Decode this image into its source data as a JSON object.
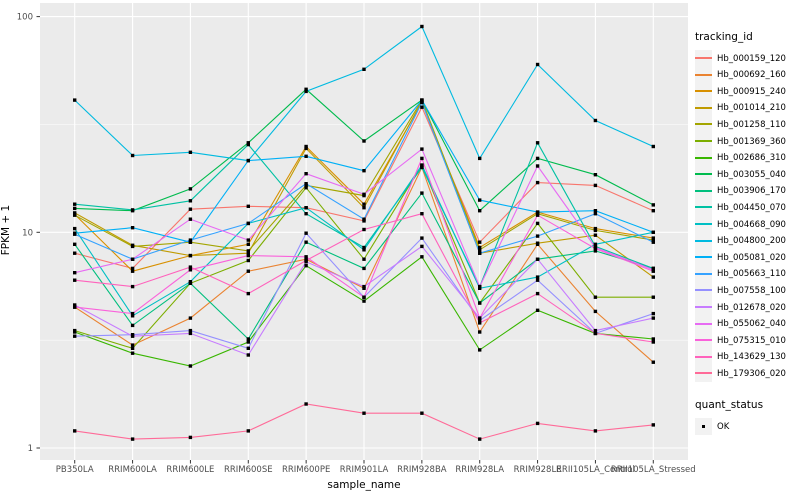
{
  "chart_data": {
    "type": "line",
    "title": "",
    "xlabel": "sample_name",
    "ylabel": "FPKM + 1",
    "y_scale": "log10",
    "ylim": [
      1,
      113
    ],
    "y_ticks": [
      1,
      10,
      100
    ],
    "y_minor_ticks": [
      3.1623,
      31.623
    ],
    "grid": "on",
    "legend_position": "right",
    "panel_bg": "#EBEBEB",
    "grid_color": "#FFFFFF",
    "tick_label_color": "#4D4D4D",
    "point_shape": "filled-square",
    "point_color": "#000000",
    "x_categories": [
      "PB350LA",
      "RRIM600LA",
      "RRIM600LE",
      "RRIM600SE",
      "RRIM600PE",
      "RRIM901LA",
      "RRIM928BA",
      "RRIM928LA",
      "RRIM928LE",
      "RRII105LA_Control",
      "RRII105LA_Stressed"
    ],
    "series": [
      {
        "name": "Hb_000159_120",
        "color": "#F8766D",
        "values": [
          8.0,
          6.8,
          12.8,
          13.2,
          13.0,
          11.3,
          38.0,
          9.0,
          17.0,
          16.5,
          12.6
        ]
      },
      {
        "name": "Hb_000692_160",
        "color": "#EA8331",
        "values": [
          4.5,
          3.0,
          4.0,
          6.6,
          7.5,
          5.5,
          20.0,
          3.45,
          8.8,
          4.3,
          2.5
        ]
      },
      {
        "name": "Hb_000915_240",
        "color": "#D89000",
        "values": [
          12.1,
          6.6,
          7.8,
          8.8,
          25.0,
          13.5,
          40.0,
          8.5,
          12.4,
          10.4,
          9.4
        ]
      },
      {
        "name": "Hb_001014_210",
        "color": "#C09B00",
        "values": [
          12.3,
          8.7,
          7.8,
          8.0,
          24.5,
          13.0,
          40.5,
          8.0,
          8.9,
          9.7,
          6.2
        ]
      },
      {
        "name": "Hb_001258_110",
        "color": "#A3A500",
        "values": [
          12.0,
          8.6,
          9.0,
          8.2,
          16.5,
          14.8,
          41.0,
          8.3,
          12.2,
          10.2,
          9.2
        ]
      },
      {
        "name": "Hb_001369_360",
        "color": "#7CAE00",
        "values": [
          3.5,
          2.9,
          5.8,
          7.4,
          16.1,
          7.5,
          20.5,
          4.7,
          11.0,
          5.0,
          5.0
        ]
      },
      {
        "name": "Hb_002686_310",
        "color": "#39B600",
        "values": [
          3.45,
          2.75,
          2.4,
          3.1,
          7.0,
          4.8,
          7.7,
          2.85,
          4.35,
          3.4,
          3.2
        ]
      },
      {
        "name": "Hb_003055_040",
        "color": "#00BB4E",
        "values": [
          12.9,
          12.6,
          15.9,
          26.0,
          46.0,
          26.5,
          41.0,
          12.6,
          22.0,
          18.5,
          13.4
        ]
      },
      {
        "name": "Hb_003906_170",
        "color": "#00BF7D",
        "values": [
          8.8,
          3.7,
          5.8,
          3.2,
          9.0,
          6.8,
          15.2,
          4.7,
          7.5,
          8.2,
          6.8
        ]
      },
      {
        "name": "Hb_004450_070",
        "color": "#00C1A3",
        "values": [
          13.5,
          12.7,
          14.0,
          25.5,
          12.2,
          8.5,
          20.0,
          5.6,
          26.0,
          8.6,
          6.8
        ]
      },
      {
        "name": "Hb_004668_090",
        "color": "#00BFC4",
        "values": [
          10.4,
          4.1,
          5.9,
          11.0,
          13.0,
          8.3,
          20.5,
          5.5,
          6.2,
          8.8,
          10.0
        ]
      },
      {
        "name": "Hb_004800_200",
        "color": "#00BAE0",
        "values": [
          41.0,
          22.7,
          23.5,
          21.5,
          45.0,
          57.0,
          90.0,
          22.0,
          60.0,
          33.0,
          25.0
        ]
      },
      {
        "name": "Hb_005081_020",
        "color": "#00B0F6",
        "values": [
          9.9,
          10.5,
          9.0,
          21.5,
          22.5,
          19.3,
          41.0,
          14.1,
          12.4,
          12.6,
          10.0
        ]
      },
      {
        "name": "Hb_005663_110",
        "color": "#35A2FF",
        "values": [
          9.8,
          7.5,
          9.2,
          11.0,
          16.8,
          11.5,
          40.0,
          8.0,
          9.6,
          12.2,
          9.0
        ]
      },
      {
        "name": "Hb_007558_100",
        "color": "#9590FF",
        "values": [
          3.3,
          3.35,
          3.5,
          2.9,
          9.9,
          5.0,
          9.4,
          3.9,
          6.0,
          3.4,
          4.2
        ]
      },
      {
        "name": "Hb_012678_020",
        "color": "#C77CFF",
        "values": [
          4.6,
          3.3,
          3.4,
          2.7,
          7.3,
          5.6,
          8.6,
          4.0,
          7.5,
          3.5,
          4.0
        ]
      },
      {
        "name": "Hb_055062_040",
        "color": "#E76BF3",
        "values": [
          6.5,
          7.5,
          11.5,
          9.2,
          18.7,
          15.0,
          24.3,
          5.6,
          20.3,
          8.5,
          6.7
        ]
      },
      {
        "name": "Hb_075315_010",
        "color": "#FA62DB",
        "values": [
          4.5,
          4.2,
          6.7,
          7.8,
          7.7,
          5.0,
          22.0,
          4.0,
          12.0,
          8.4,
          6.6
        ]
      },
      {
        "name": "Hb_143629_130",
        "color": "#FF62BC",
        "values": [
          6.0,
          5.6,
          6.9,
          5.2,
          7.4,
          10.3,
          12.2,
          3.8,
          5.2,
          3.4,
          3.1
        ]
      },
      {
        "name": "Hb_179306_020",
        "color": "#FF6A98",
        "values": [
          1.2,
          1.1,
          1.12,
          1.2,
          1.6,
          1.45,
          1.45,
          1.1,
          1.3,
          1.2,
          1.28
        ]
      }
    ],
    "legend": {
      "tracking_id_title": "tracking_id",
      "quant_status_title": "quant_status",
      "quant_status_items": [
        {
          "label": "OK"
        }
      ]
    }
  }
}
